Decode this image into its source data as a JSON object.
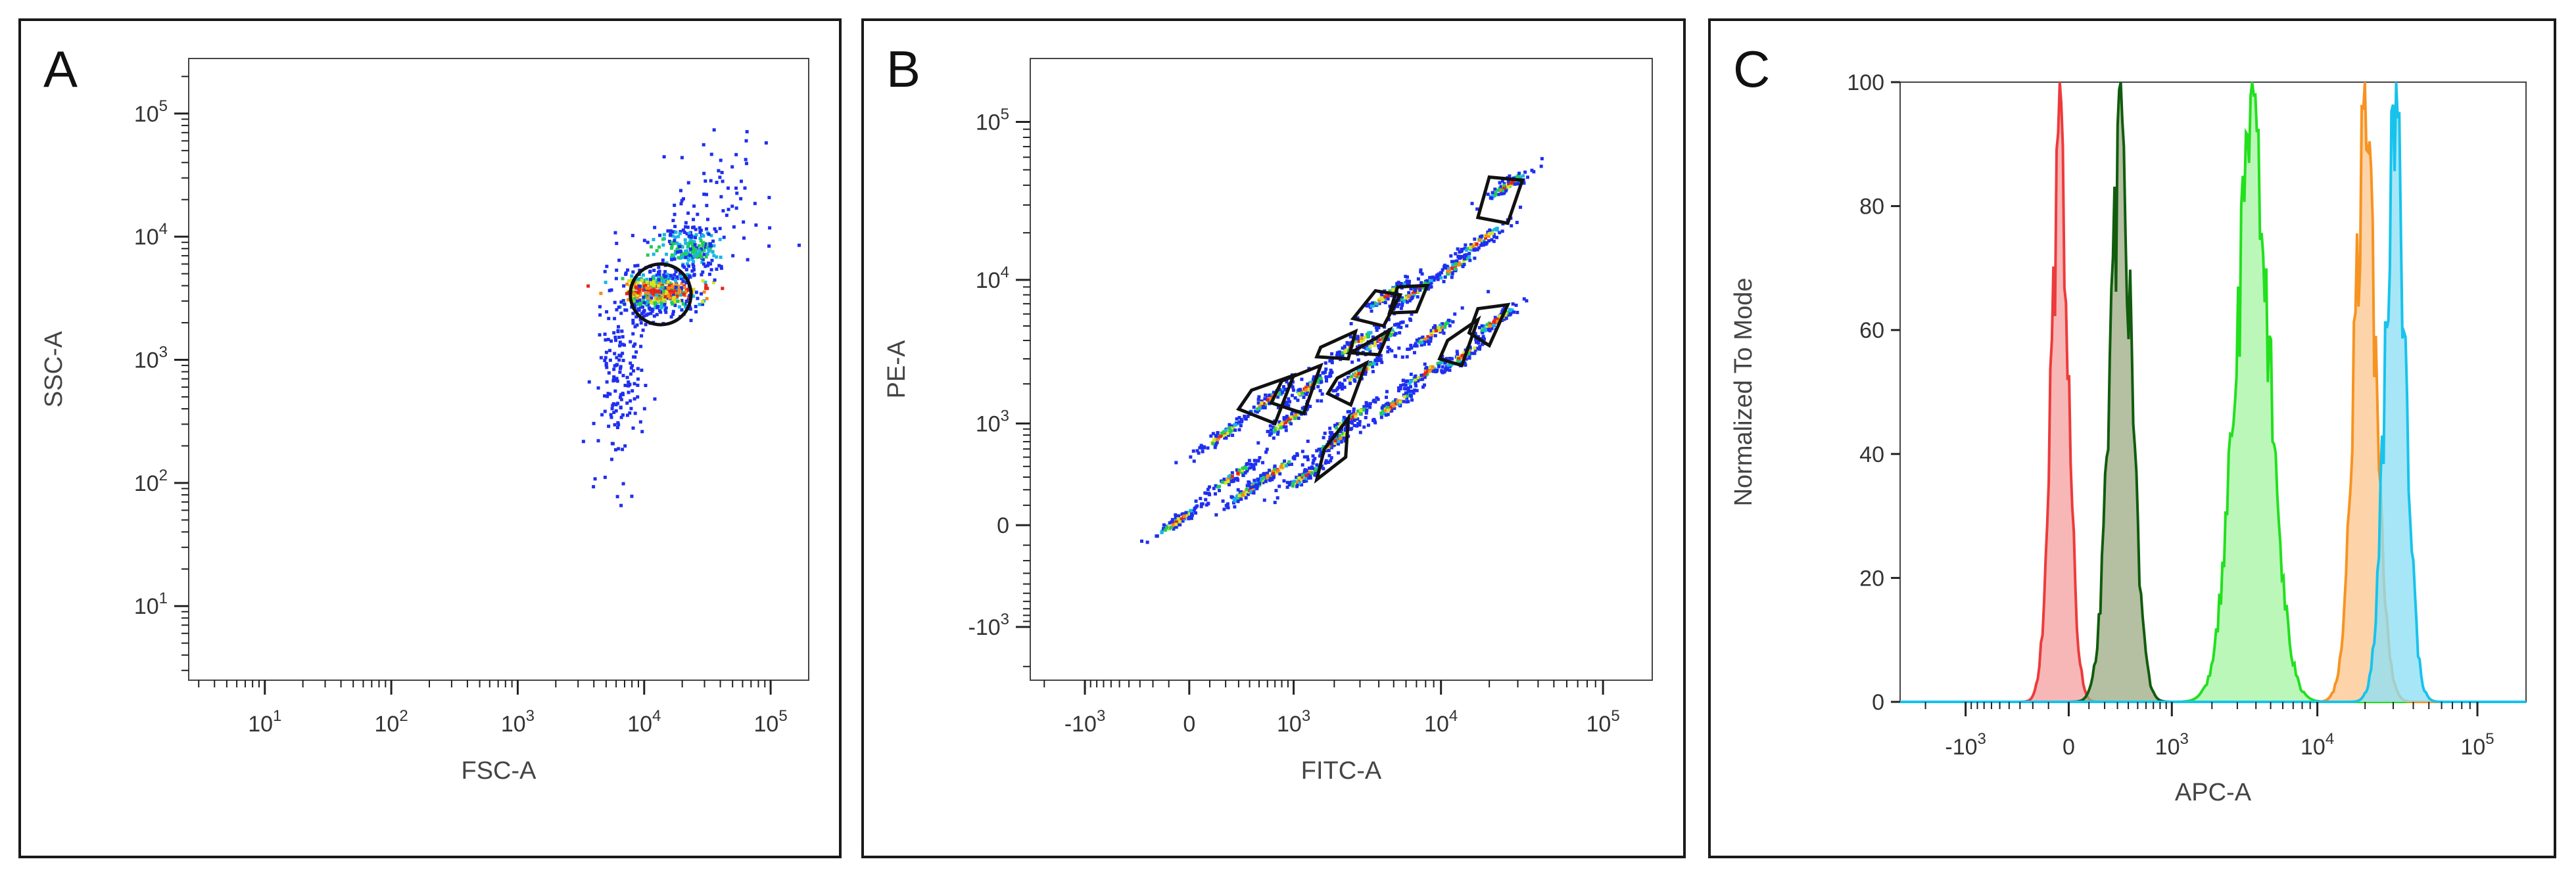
{
  "panels": [
    {
      "letter": "A",
      "xlabel": "FSC-A",
      "ylabel": "SSC-A"
    },
    {
      "letter": "B",
      "xlabel": "FITC-A",
      "ylabel": "PE-A"
    },
    {
      "letter": "C",
      "xlabel": "APC-A",
      "ylabel": "Normalized To Mode"
    }
  ],
  "chart_data": [
    {
      "type": "scatter",
      "panel": "A",
      "xlabel": "FSC-A",
      "ylabel": "SSC-A",
      "x_scale": "log",
      "y_scale": "log",
      "xlim": [
        2.5,
        200000
      ],
      "ylim": [
        2.5,
        280000
      ],
      "x_ticks": [
        {
          "v": 10,
          "b": "10",
          "e": "1"
        },
        {
          "v": 100,
          "b": "10",
          "e": "2"
        },
        {
          "v": 1000,
          "b": "10",
          "e": "3"
        },
        {
          "v": 10000,
          "b": "10",
          "e": "4"
        },
        {
          "v": 100000,
          "b": "10",
          "e": "5"
        }
      ],
      "y_ticks": [
        {
          "v": 10,
          "b": "10",
          "e": "1"
        },
        {
          "v": 100,
          "b": "10",
          "e": "2"
        },
        {
          "v": 1000,
          "b": "10",
          "e": "3"
        },
        {
          "v": 10000,
          "b": "10",
          "e": "4"
        },
        {
          "v": 100000,
          "b": "10",
          "e": "5"
        }
      ],
      "population_clusters": [
        {
          "x": 13000,
          "y": 3600,
          "sx": 0.16,
          "sy": 0.09,
          "n": 500
        },
        {
          "x": 22000,
          "y": 8000,
          "sx": 0.12,
          "sy": 0.1,
          "n": 220
        },
        {
          "x": 6500,
          "y": 700,
          "sx": 0.1,
          "sy": 0.4,
          "n": 170
        },
        {
          "x": 40000,
          "y": 20000,
          "sx": 0.25,
          "sy": 0.25,
          "n": 70
        }
      ],
      "gate": {
        "shape": "circle",
        "x": 13500,
        "y": 3400,
        "r_decades": 0.24
      }
    },
    {
      "type": "scatter",
      "panel": "B",
      "xlabel": "FITC-A",
      "ylabel": "PE-A",
      "x_scale": "biexponential",
      "y_scale": "biexponential",
      "xlim": [
        -2500,
        200000
      ],
      "ylim": [
        -2500,
        250000
      ],
      "x_ticks": [
        {
          "v": -1000,
          "b": "-10",
          "e": "3"
        },
        {
          "v": 0,
          "b": "0",
          "e": ""
        },
        {
          "v": 1000,
          "b": "10",
          "e": "3"
        },
        {
          "v": 10000,
          "b": "10",
          "e": "4"
        },
        {
          "v": 100000,
          "b": "10",
          "e": "5"
        }
      ],
      "y_ticks": [
        {
          "v": -1000,
          "b": "-10",
          "e": "3"
        },
        {
          "v": 0,
          "b": "0",
          "e": ""
        },
        {
          "v": 1000,
          "b": "10",
          "e": "3"
        },
        {
          "v": 10000,
          "b": "10",
          "e": "4"
        },
        {
          "v": 100000,
          "b": "10",
          "e": "5"
        }
      ],
      "bead_populations": [
        {
          "x": -50,
          "y": 20
        },
        {
          "x": 250,
          "y": 300
        },
        {
          "x": 180,
          "y": 800
        },
        {
          "x": 400,
          "y": 200
        },
        {
          "x": 700,
          "y": 350
        },
        {
          "x": 900,
          "y": 1050
        },
        {
          "x": 1200,
          "y": 300
        },
        {
          "x": 2000,
          "y": 700
        },
        {
          "x": 2600,
          "y": 1100
        },
        {
          "x": 600,
          "y": 1500
        },
        {
          "x": 1300,
          "y": 1900
        },
        {
          "x": 3000,
          "y": 2400
        },
        {
          "x": 2800,
          "y": 3800
        },
        {
          "x": 4200,
          "y": 4100
        },
        {
          "x": 4600,
          "y": 8000
        },
        {
          "x": 7000,
          "y": 8500
        },
        {
          "x": 8000,
          "y": 2400
        },
        {
          "x": 14000,
          "y": 3200
        },
        {
          "x": 22000,
          "y": 5400
        },
        {
          "x": 12000,
          "y": 12000
        },
        {
          "x": 18000,
          "y": 18000
        },
        {
          "x": 26000,
          "y": 40000
        },
        {
          "x": 5000,
          "y": 1400
        },
        {
          "x": 9000,
          "y": 4500
        }
      ],
      "gates": [
        [
          [
            420,
            1800
          ],
          [
            1000,
            2300
          ],
          [
            700,
            1000
          ],
          [
            300,
            1300
          ]
        ],
        [
          [
            800,
            2100
          ],
          [
            1600,
            2700
          ],
          [
            1200,
            1200
          ],
          [
            650,
            1450
          ]
        ],
        [
          [
            1700,
            600
          ],
          [
            2500,
            1100
          ],
          [
            2400,
            500
          ],
          [
            1500,
            280
          ]
        ],
        [
          [
            2100,
            2200
          ],
          [
            3300,
            2800
          ],
          [
            2600,
            1400
          ],
          [
            1800,
            1700
          ]
        ],
        [
          [
            1600,
            3600
          ],
          [
            2800,
            4600
          ],
          [
            2500,
            3000
          ],
          [
            1500,
            3100
          ]
        ],
        [
          [
            3300,
            3800
          ],
          [
            4700,
            4700
          ],
          [
            4000,
            3200
          ],
          [
            2600,
            3300
          ]
        ],
        [
          [
            3800,
            8500
          ],
          [
            5500,
            8000
          ],
          [
            4300,
            5000
          ],
          [
            2700,
            5600
          ]
        ],
        [
          [
            5300,
            9000
          ],
          [
            8200,
            9200
          ],
          [
            7000,
            6200
          ],
          [
            4700,
            6100
          ]
        ],
        [
          [
            11000,
            4000
          ],
          [
            17000,
            5500
          ],
          [
            13500,
            2700
          ],
          [
            9800,
            3000
          ]
        ],
        [
          [
            17000,
            6500
          ],
          [
            26000,
            6900
          ],
          [
            20000,
            3700
          ],
          [
            15000,
            4500
          ]
        ],
        [
          [
            20000,
            45000
          ],
          [
            32000,
            43000
          ],
          [
            26000,
            23000
          ],
          [
            17000,
            25000
          ]
        ]
      ]
    },
    {
      "type": "area",
      "panel": "C",
      "xlabel": "APC-A",
      "ylabel": "Normalized To Mode",
      "x_scale": "biexponential",
      "xlim": [
        -3000,
        200000
      ],
      "ylim": [
        0,
        100
      ],
      "x_ticks": [
        {
          "v": -1000,
          "b": "-10",
          "e": "3"
        },
        {
          "v": 0,
          "b": "0",
          "e": ""
        },
        {
          "v": 1000,
          "b": "10",
          "e": "3"
        },
        {
          "v": 10000,
          "b": "10",
          "e": "4"
        },
        {
          "v": 100000,
          "b": "10",
          "e": "5"
        }
      ],
      "y_ticks": [
        0,
        20,
        40,
        60,
        80,
        100
      ],
      "series": [
        {
          "color": "#ed3b3b",
          "fill": "#f6a3a3",
          "peak_x": -40,
          "width": 0.055,
          "peak": 100
        },
        {
          "color": "#115c0e",
          "fill": "#9fae86",
          "peak_x": 330,
          "width": 0.07,
          "peak": 100
        },
        {
          "color": "#22e01e",
          "fill": "#a9f5a6",
          "peak_x": 3800,
          "width": 0.11,
          "peak": 100
        },
        {
          "color": "#f79321",
          "fill": "#fcc891",
          "peak_x": 20000,
          "width": 0.07,
          "peak": 100
        },
        {
          "color": "#17c3ec",
          "fill": "#8edff5",
          "peak_x": 31000,
          "width": 0.065,
          "peak": 100
        }
      ]
    }
  ]
}
